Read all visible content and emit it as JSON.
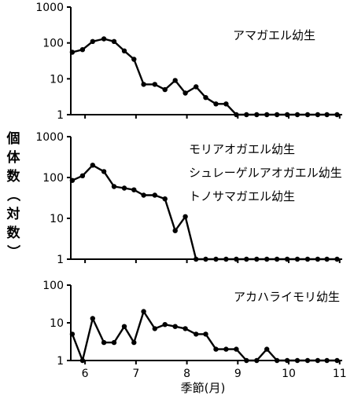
{
  "chart_data": {
    "type": "line",
    "ylabel_chars": [
      "個",
      "体",
      "数",
      "（",
      "対",
      "数",
      "）"
    ],
    "xlabel": "季節(月)",
    "x_ticks": [
      6,
      7,
      8,
      9,
      10,
      11
    ],
    "xlim": [
      5.72,
      11.05
    ],
    "panels": [
      {
        "scale": "log",
        "ylim": [
          1,
          1000
        ],
        "y_ticks": [
          "1",
          "10",
          "100",
          "1000"
        ],
        "series": [
          {
            "labels": [
              "アマガエル幼生"
            ],
            "x": [
              5.75,
              5.95,
              6.15,
              6.37,
              6.57,
              6.77,
              6.96,
              7.15,
              7.37,
              7.57,
              7.77,
              7.97,
              8.18,
              8.37,
              8.57,
              8.77,
              8.97,
              9.17,
              9.37,
              9.57,
              9.77,
              9.97,
              10.17,
              10.37,
              10.57,
              10.75,
              10.95
            ],
            "y": [
              55,
              65,
              110,
              130,
              110,
              60,
              35,
              7,
              7,
              5,
              9,
              4,
              6,
              3,
              2,
              2,
              1,
              1,
              1,
              1,
              1,
              1,
              1,
              1,
              1,
              1,
              1
            ]
          }
        ]
      },
      {
        "scale": "log",
        "ylim": [
          1,
          1000
        ],
        "y_ticks": [
          "1",
          "10",
          "100",
          "1000"
        ],
        "series": [
          {
            "labels": [
              "モリアオガエル幼生",
              "シュレーゲルアオガエル幼生",
              "トノサマガエル幼生"
            ],
            "x": [
              5.75,
              5.95,
              6.15,
              6.37,
              6.57,
              6.77,
              6.96,
              7.15,
              7.37,
              7.57,
              7.77,
              7.97,
              8.18,
              8.37,
              8.57,
              8.77,
              8.97,
              9.17,
              9.37,
              9.57,
              9.77,
              9.97,
              10.17,
              10.37,
              10.57,
              10.75,
              10.95
            ],
            "y": [
              85,
              110,
              200,
              140,
              60,
              55,
              50,
              37,
              37,
              30,
              5,
              11,
              1,
              1,
              1,
              1,
              1,
              1,
              1,
              1,
              1,
              1,
              1,
              1,
              1,
              1,
              1
            ]
          }
        ]
      },
      {
        "scale": "log",
        "ylim": [
          1,
          100
        ],
        "y_ticks": [
          "1",
          "10",
          "100"
        ],
        "series": [
          {
            "labels": [
              "アカハライモリ幼生"
            ],
            "x": [
              5.75,
              5.95,
              6.15,
              6.37,
              6.57,
              6.77,
              6.96,
              7.15,
              7.37,
              7.57,
              7.77,
              7.97,
              8.18,
              8.37,
              8.57,
              8.77,
              8.97,
              9.17,
              9.37,
              9.57,
              9.77,
              9.97,
              10.17,
              10.37,
              10.57,
              10.75,
              10.95
            ],
            "y": [
              5,
              1,
              13,
              3,
              3,
              8,
              3,
              20,
              7,
              9,
              8,
              7,
              5,
              5,
              2,
              2,
              2,
              1,
              1,
              2,
              1,
              1,
              1,
              1,
              1,
              1,
              1
            ]
          }
        ]
      }
    ]
  }
}
